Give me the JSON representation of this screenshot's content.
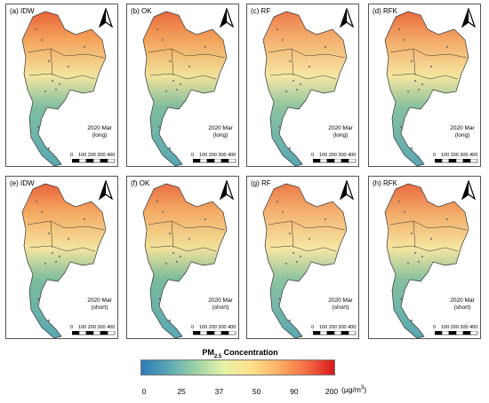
{
  "panels": [
    {
      "label": "(a) IDW",
      "method": "IDW",
      "line1": "2020 Mar",
      "line2": "(long)",
      "color_top": "#f5a35a",
      "color_north": "#e8643c",
      "color_mid": "#f3e5a0",
      "color_south": "#7fbf9f"
    },
    {
      "label": "(b) OK",
      "method": "OK",
      "line1": "2020 Mar",
      "line2": "(long)",
      "color_top": "#f3a25a",
      "color_north": "#e96a3e",
      "color_mid": "#f2e39a",
      "color_south": "#7dbd9d"
    },
    {
      "label": "(c) RF",
      "method": "RF",
      "line1": "2020 Mar",
      "line2": "(long)",
      "color_top": "#f4b070",
      "color_north": "#ec7a48",
      "color_mid": "#f6e7a3",
      "color_south": "#8cc3a0"
    },
    {
      "label": "(d) RFK",
      "method": "RFK",
      "line1": "2020 Mar",
      "line2": "(long)",
      "color_top": "#f3a866",
      "color_north": "#e86a40",
      "color_mid": "#f5e6a0",
      "color_south": "#86c19e"
    },
    {
      "label": "(e) IDW",
      "method": "IDW",
      "line1": "2020 Mar",
      "line2": "(short)",
      "color_top": "#f5a860",
      "color_north": "#e8643c",
      "color_mid": "#f3e5a0",
      "color_south": "#7cbd9c"
    },
    {
      "label": "(f) OK",
      "method": "OK",
      "line1": "2020 Mar",
      "line2": "(short)",
      "color_top": "#f4ac66",
      "color_north": "#ea6e42",
      "color_mid": "#f1e29a",
      "color_south": "#79bb9b"
    },
    {
      "label": "(g) RF",
      "method": "RF",
      "line1": "2020 Mar",
      "line2": "(short)",
      "color_top": "#f4b070",
      "color_north": "#ec7a48",
      "color_mid": "#f6e7a3",
      "color_south": "#8cc3a0"
    },
    {
      "label": "(h) RFK",
      "method": "RFK",
      "line1": "2020 Mar",
      "line2": "(short)",
      "color_top": "#f3a866",
      "color_north": "#e86a40",
      "color_mid": "#f5e6a0",
      "color_south": "#86c19e"
    }
  ],
  "scalebar": {
    "ticks": [
      "0",
      "100 200 300 400 km"
    ]
  },
  "legend": {
    "title_main": "PM",
    "title_sub": "2.5",
    "title_rest": " Concentration",
    "ticks": [
      "0",
      "25",
      "37",
      "50",
      "90",
      "200"
    ],
    "unit": "(µg/m",
    "unit_sup": "3",
    "unit_end": ")",
    "colors": [
      "#2c7bb6",
      "#5aa7b4",
      "#9fd3a6",
      "#e6f2a8",
      "#fee08b",
      "#fdae61",
      "#f46d43",
      "#d7191c"
    ]
  },
  "icons": {
    "north_arrow": "north-arrow-icon"
  }
}
